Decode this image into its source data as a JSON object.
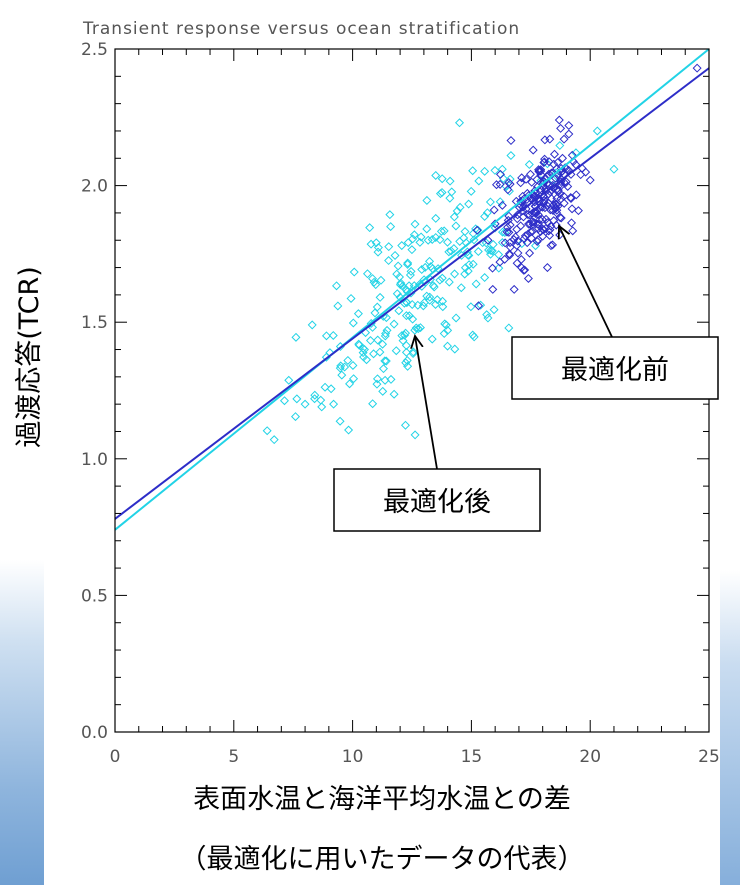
{
  "chart_data": {
    "type": "scatter",
    "title": "Transient response versus ocean stratification",
    "xlabel": "表面水温と海洋平均水温との差",
    "xlabel_sub": "（最適化に用いたデータの代表）",
    "ylabel": "過渡応答(TCR)",
    "xlim": [
      0,
      25
    ],
    "ylim": [
      0,
      2.5
    ],
    "xticks": [
      0,
      5,
      10,
      15,
      20,
      25
    ],
    "yticks": [
      "0.0",
      "0.5",
      "1.0",
      "1.5",
      "2.0",
      "2.5"
    ],
    "grid": false,
    "series": [
      {
        "color": "#22d3e6",
        "marker": "diamond",
        "fit_line": {
          "x": [
            0,
            25
          ],
          "y": [
            0.74,
            2.5
          ]
        },
        "cluster": {
          "center": [
            13.0,
            1.63
          ],
          "spread": [
            2.4,
            0.16
          ],
          "count": 240
        },
        "points": [
          [
            6.7,
            1.07
          ],
          [
            8.0,
            1.2
          ],
          [
            8.4,
            1.22
          ],
          [
            8.7,
            1.19
          ],
          [
            9.2,
            1.2
          ],
          [
            8.3,
            1.49
          ],
          [
            8.9,
            1.45
          ],
          [
            9.5,
            1.34
          ],
          [
            9.8,
            1.36
          ],
          [
            10.5,
            1.4
          ],
          [
            14.5,
            2.23
          ],
          [
            16.3,
            2.06
          ],
          [
            20.3,
            2.2
          ],
          [
            19.4,
            2.12
          ],
          [
            21.0,
            2.06
          ],
          [
            11.6,
            1.85
          ],
          [
            12.6,
            1.82
          ],
          [
            13.5,
            1.88
          ],
          [
            15.8,
            1.94
          ],
          [
            16.6,
            1.98
          ],
          [
            15.2,
            1.64
          ],
          [
            14.0,
            1.47
          ],
          [
            11.3,
            1.33
          ],
          [
            12.3,
            1.36
          ],
          [
            17.7,
            1.78
          ],
          [
            18.2,
            2.08
          ]
        ]
      },
      {
        "color": "#2d2dc8",
        "marker": "diamond",
        "fit_line": {
          "x": [
            0,
            25
          ],
          "y": [
            0.78,
            2.43
          ]
        },
        "cluster": {
          "center": [
            17.9,
            1.93
          ],
          "spread": [
            0.8,
            0.09
          ],
          "count": 210
        },
        "points": [
          [
            15.9,
            1.62
          ],
          [
            16.2,
            1.72
          ],
          [
            16.8,
            1.62
          ],
          [
            17.4,
            1.66
          ],
          [
            18.2,
            1.7
          ],
          [
            15.7,
            1.8
          ],
          [
            16.0,
            1.86
          ],
          [
            16.4,
            1.73
          ],
          [
            18.7,
            2.24
          ],
          [
            18.9,
            2.17
          ],
          [
            19.1,
            2.22
          ],
          [
            18.3,
            2.17
          ],
          [
            16.6,
            1.75
          ],
          [
            17.2,
            1.69
          ],
          [
            16.5,
            1.83
          ],
          [
            19.6,
            2.04
          ],
          [
            20.0,
            2.02
          ],
          [
            24.5,
            2.43
          ],
          [
            17.6,
            2.13
          ],
          [
            15.3,
            1.56
          ]
        ]
      }
    ]
  },
  "annotations": [
    {
      "text": "最適化前",
      "target": [
        17.9,
        1.93
      ]
    },
    {
      "text": "最適化後",
      "target": [
        12.3,
        1.44
      ]
    }
  ]
}
